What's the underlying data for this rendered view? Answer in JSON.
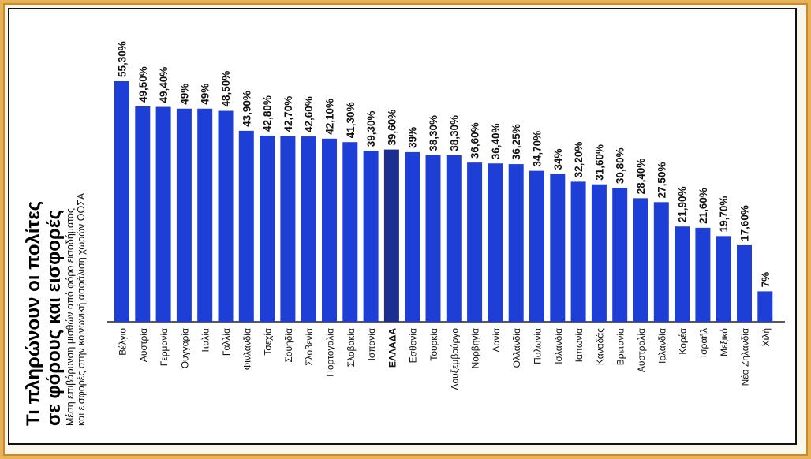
{
  "title_line1": "Τι πληρώνουν οι πολίτες",
  "title_line2": "σε φόρους και εισφορές",
  "subtitle_line1": "Μέση επιβάρυνση μισθών από φόρο εισοδήματος",
  "subtitle_line2": "και εισφορές στην κοινωνική ασφάλιση χωρών ΟΟΣΑ",
  "colors": {
    "bar": "#1e3fd6",
    "highlight": "#1a2f8f",
    "page": "#e8b25a"
  },
  "chart_data": {
    "type": "bar",
    "title": "Τι πληρώνουν οι πολίτες σε φόρους και εισφορές",
    "xlabel": "",
    "ylabel": "",
    "ylim": [
      0,
      56
    ],
    "grid": false,
    "highlight_index": 13,
    "categories": [
      "Βέλγιο",
      "Αυστρία",
      "Γερμανία",
      "Ουγγαρία",
      "Ιταλία",
      "Γαλλία",
      "Φινλανδία",
      "Τσεχία",
      "Σουηδία",
      "Σλοβενία",
      "Πορτογαλία",
      "Σλοβακία",
      "Ισπανία",
      "ΕΛΛΑΔΑ",
      "Εσθονία",
      "Τουρκία",
      "Λουξεμβούργο",
      "Νορβηγία",
      "Δανία",
      "Ολλανδία",
      "Πολωνία",
      "Ισλανδία",
      "Ιαπωνία",
      "Καναδάς",
      "Βρετανία",
      "Αυστραλία",
      "Ιρλανδία",
      "Κορέα",
      "Ισραήλ",
      "Μεξικό",
      "Νέα Ζηλανδία",
      "Χιλή"
    ],
    "values": [
      55.3,
      49.5,
      49.4,
      49,
      49,
      48.5,
      43.9,
      42.8,
      42.7,
      42.6,
      42.1,
      41.3,
      39.3,
      39.6,
      39,
      38.3,
      38.3,
      36.6,
      36.4,
      36.25,
      34.7,
      34,
      32.2,
      31.6,
      30.8,
      28.4,
      27.5,
      21.9,
      21.6,
      19.7,
      17.6,
      7
    ],
    "labels": [
      "55,30%",
      "49,50%",
      "49,40%",
      "49%",
      "49%",
      "48,50%",
      "43,90%",
      "42,80%",
      "42,70%",
      "42,60%",
      "42,10%",
      "41,30%",
      "39,30%",
      "39,60%",
      "39%",
      "38,30%",
      "38,30%",
      "36,60%",
      "36,40%",
      "36,25%",
      "34,70%",
      "34%",
      "32,20%",
      "31,60%",
      "30,80%",
      "28,40%",
      "27,50%",
      "21,90%",
      "21,60%",
      "19,70%",
      "17,60%",
      "7%"
    ]
  }
}
